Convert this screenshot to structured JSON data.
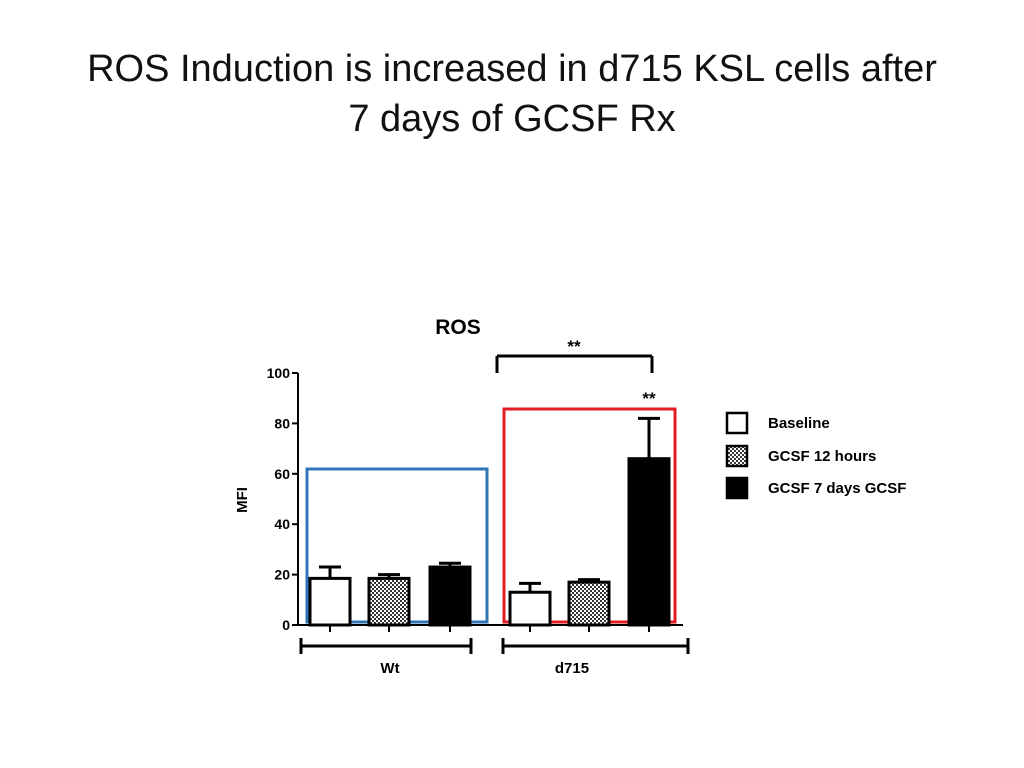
{
  "slide": {
    "title_line1": "ROS Induction is increased in d715 KSL cells after",
    "title_line2": "7 days of GCSF Rx"
  },
  "chart_data": {
    "type": "bar",
    "title": "ROS",
    "xlabel": "",
    "ylabel": "MFI",
    "ylim": [
      0,
      100
    ],
    "yticks": [
      0,
      20,
      40,
      60,
      80,
      100
    ],
    "groups": [
      "Wt",
      "d715"
    ],
    "series": [
      {
        "name": "Baseline",
        "values": [
          18.5,
          13
        ],
        "errors": [
          4.5,
          3.5
        ],
        "fill": "white"
      },
      {
        "name": "GCSF 12 hours",
        "values": [
          18.5,
          17
        ],
        "errors": [
          1.5,
          1
        ],
        "fill": "checker"
      },
      {
        "name": "GCSF 7 days GCSF",
        "values": [
          23,
          66
        ],
        "errors": [
          1.5,
          16
        ],
        "fill": "black"
      }
    ],
    "annotations": {
      "bracket_label": "**",
      "bar_label": "**"
    },
    "highlight_colors": {
      "Wt": "#2e75b6",
      "d715": "#e31b23"
    },
    "legend_position": "right"
  }
}
